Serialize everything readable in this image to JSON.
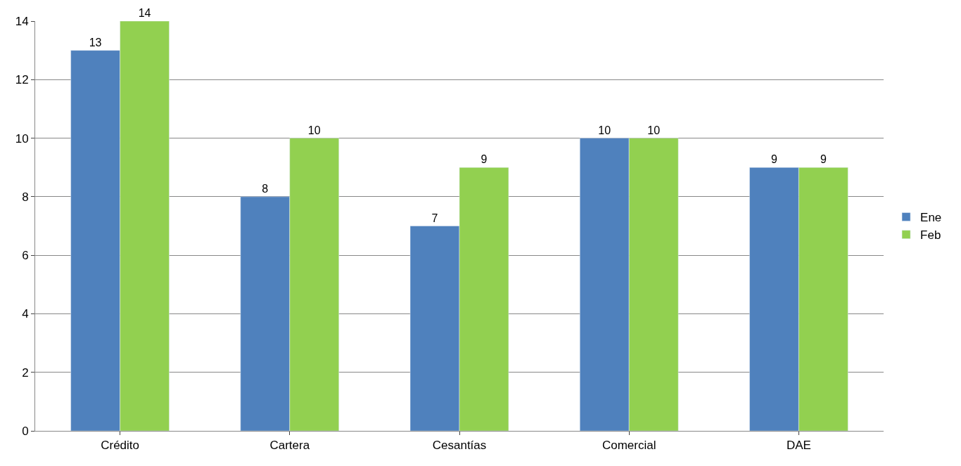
{
  "chart_data": {
    "type": "bar",
    "categories": [
      "Crédito",
      "Cartera",
      "Cesantías",
      "Comercial",
      "DAE"
    ],
    "series": [
      {
        "name": "Ene",
        "color": "#4f81bd",
        "values": [
          13,
          8,
          7,
          10,
          9
        ]
      },
      {
        "name": "Feb",
        "color": "#92d050",
        "values": [
          14,
          10,
          9,
          10,
          9
        ]
      }
    ],
    "ylim": [
      0,
      14
    ],
    "yticks": [
      0,
      2,
      4,
      6,
      8,
      10,
      12,
      14
    ],
    "grid": "y",
    "legend": "right",
    "data_labels": true
  }
}
